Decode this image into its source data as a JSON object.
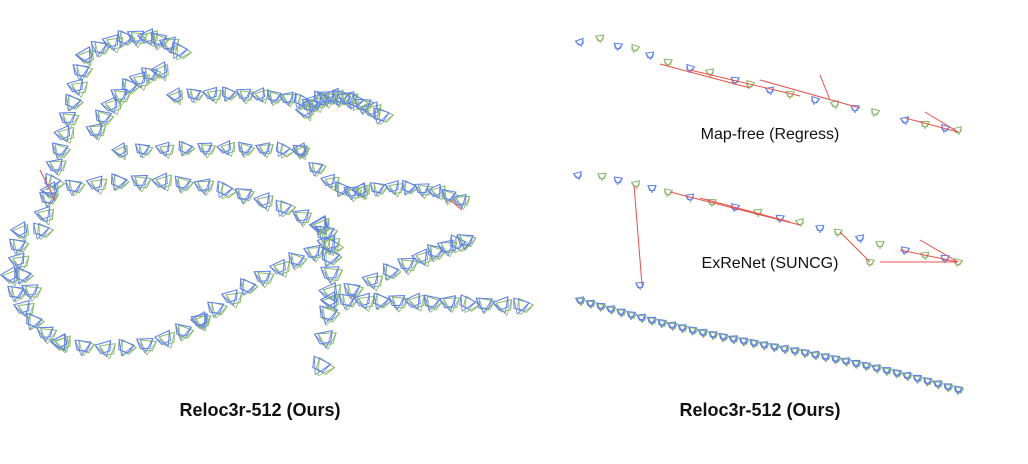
{
  "left_panel": {
    "caption": "Reloc3r-512 (Ours)"
  },
  "right_panel": {
    "rows": [
      {
        "label": "Map-free (Regress)"
      },
      {
        "label": "ExReNet (SUNCG)"
      },
      {
        "label": ""
      }
    ],
    "caption": "Reloc3r-512 (Ours)"
  },
  "colors": {
    "estimated_camera": "#5b7ff0",
    "ground_truth_camera": "#8ab86a",
    "error_line": "#e8504a",
    "text": "#111111"
  }
}
